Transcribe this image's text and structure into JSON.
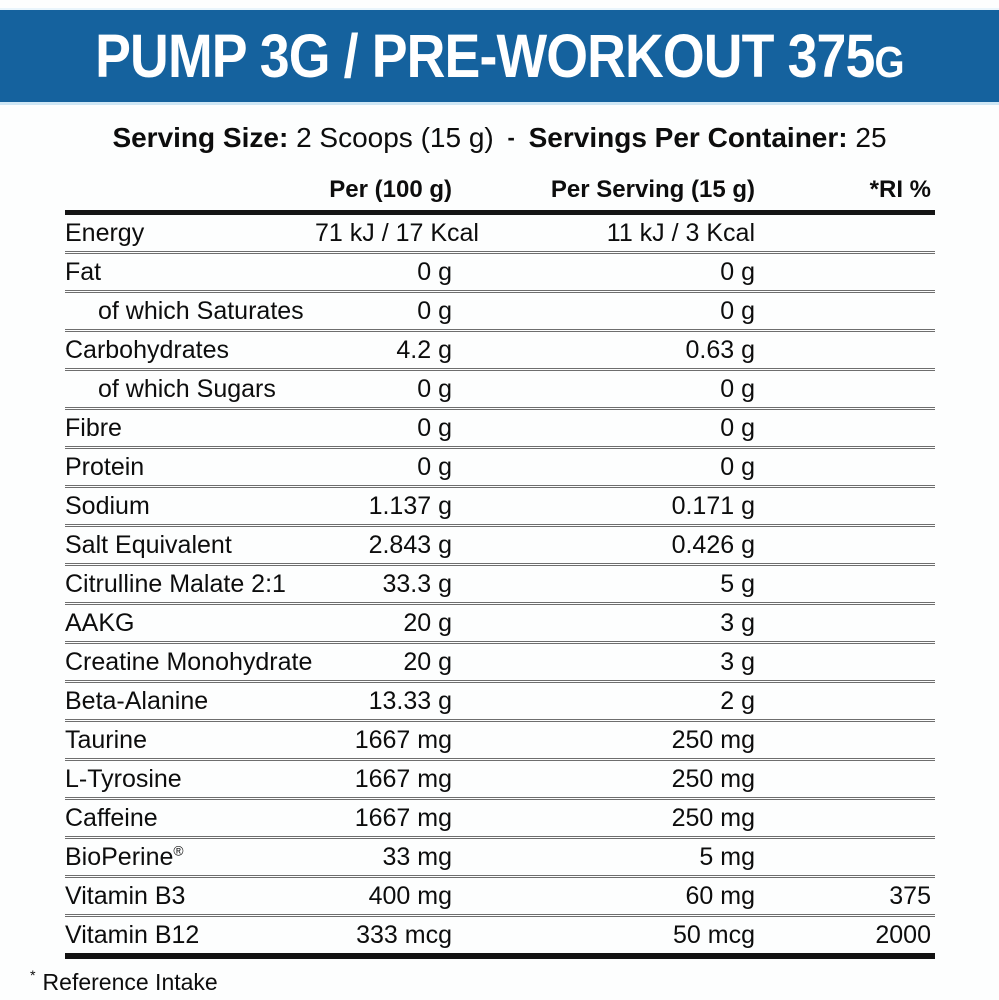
{
  "banner": {
    "title_main": "PUMP 3G / PRE-WORKOUT 375",
    "title_suffix": "G",
    "bg_color": "#15629E",
    "text_color": "#FFFFFF"
  },
  "serving": {
    "size_label": "Serving Size:",
    "size_value": "2 Scoops (15 g)",
    "separator": "-",
    "container_label": "Servings Per Container:",
    "container_value": "25"
  },
  "table": {
    "columns": {
      "label": "",
      "per100": "Per (100 g)",
      "per_serving": "Per Serving (15 g)",
      "ri": "*RI %"
    },
    "rows": [
      {
        "label": "Energy",
        "indent": false,
        "sup": "",
        "per100": "71 kJ / 17 Kcal",
        "per_serving": "11 kJ / 3 Kcal",
        "ri": ""
      },
      {
        "label": "Fat",
        "indent": false,
        "sup": "",
        "per100": "0 g",
        "per_serving": "0 g",
        "ri": ""
      },
      {
        "label": "of which Saturates",
        "indent": true,
        "sup": "",
        "per100": "0 g",
        "per_serving": "0 g",
        "ri": ""
      },
      {
        "label": "Carbohydrates",
        "indent": false,
        "sup": "",
        "per100": "4.2 g",
        "per_serving": "0.63 g",
        "ri": ""
      },
      {
        "label": "of which Sugars",
        "indent": true,
        "sup": "",
        "per100": "0 g",
        "per_serving": "0 g",
        "ri": ""
      },
      {
        "label": "Fibre",
        "indent": false,
        "sup": "",
        "per100": "0 g",
        "per_serving": "0 g",
        "ri": ""
      },
      {
        "label": "Protein",
        "indent": false,
        "sup": "",
        "per100": "0 g",
        "per_serving": "0 g",
        "ri": ""
      },
      {
        "label": "Sodium",
        "indent": false,
        "sup": "",
        "per100": "1.137 g",
        "per_serving": "0.171 g",
        "ri": ""
      },
      {
        "label": "Salt Equivalent",
        "indent": false,
        "sup": "",
        "per100": "2.843 g",
        "per_serving": "0.426 g",
        "ri": ""
      },
      {
        "label": "Citrulline Malate 2:1",
        "indent": false,
        "sup": "",
        "per100": "33.3 g",
        "per_serving": "5 g",
        "ri": ""
      },
      {
        "label": "AAKG",
        "indent": false,
        "sup": "",
        "per100": "20 g",
        "per_serving": "3 g",
        "ri": ""
      },
      {
        "label": "Creatine Monohydrate",
        "indent": false,
        "sup": "",
        "per100": "20 g",
        "per_serving": "3 g",
        "ri": ""
      },
      {
        "label": "Beta-Alanine",
        "indent": false,
        "sup": "",
        "per100": "13.33 g",
        "per_serving": "2 g",
        "ri": ""
      },
      {
        "label": "Taurine",
        "indent": false,
        "sup": "",
        "per100": "1667 mg",
        "per_serving": "250 mg",
        "ri": ""
      },
      {
        "label": "L-Tyrosine",
        "indent": false,
        "sup": "",
        "per100": "1667 mg",
        "per_serving": "250 mg",
        "ri": ""
      },
      {
        "label": "Caffeine",
        "indent": false,
        "sup": "",
        "per100": "1667 mg",
        "per_serving": "250 mg",
        "ri": ""
      },
      {
        "label": "BioPerine",
        "indent": false,
        "sup": "®",
        "per100": "33 mg",
        "per_serving": "5 mg",
        "ri": ""
      },
      {
        "label": "Vitamin B3",
        "indent": false,
        "sup": "",
        "per100": "400 mg",
        "per_serving": "60 mg",
        "ri": "375"
      },
      {
        "label": "Vitamin B12",
        "indent": false,
        "sup": "",
        "per100": "333 mcg",
        "per_serving": "50 mcg",
        "ri": "2000"
      }
    ]
  },
  "footnote": {
    "symbol": "*",
    "text": "Reference Intake"
  }
}
